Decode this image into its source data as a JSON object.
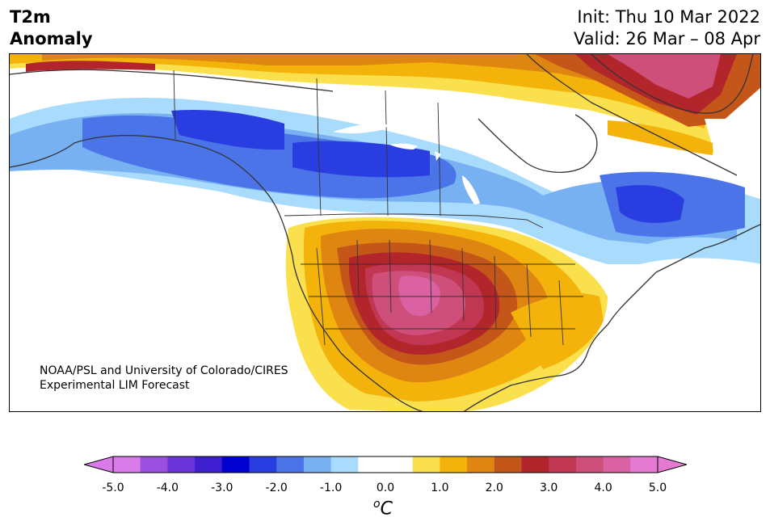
{
  "header": {
    "left_line1": "T2m",
    "left_line2": "Anomaly",
    "right_line1": "Init: Thu 10 Mar 2022",
    "right_line2": "Valid: 26 Mar – 08 Apr"
  },
  "credit": {
    "line1": "NOAA/PSL and University of Colorado/CIRES",
    "line2": "Experimental LIM Forecast"
  },
  "colorbar": {
    "unit_base": "C",
    "unit_sup": "o",
    "tick_labels": [
      "-5.0",
      "-4.0",
      "-3.0",
      "-2.0",
      "-1.0",
      "0.0",
      "1.0",
      "2.0",
      "3.0",
      "4.0",
      "5.0"
    ],
    "colors": [
      "#d87ae8",
      "#9a4fe0",
      "#6a35d8",
      "#3d1fd0",
      "#0000cf",
      "#2a3de0",
      "#4a74e8",
      "#78b1f2",
      "#a9dbfc",
      "#ffffff",
      "#ffffff",
      "#fbe04e",
      "#f3b30a",
      "#df8612",
      "#c5561a",
      "#b2262b",
      "#c13652",
      "#cd4f7a",
      "#da62a2",
      "#e47ad2"
    ],
    "under_color": "#d87ae8",
    "over_color": "#e47ad2"
  },
  "map": {
    "region": "North America",
    "field": "T2m anomaly",
    "anomaly_colors": {
      "neg_strong": "#2a3de0",
      "neg_mid": "#4a74e8",
      "neg_light": "#78b1f2",
      "neg_faint": "#a9dbfc",
      "pos_faint": "#fbe04e",
      "pos_light": "#f3b30a",
      "pos_mid": "#df8612",
      "pos_warm": "#c5561a",
      "pos_strong": "#b2262b",
      "pos_hot": "#c13652",
      "pos_max": "#cd4f7a"
    }
  }
}
